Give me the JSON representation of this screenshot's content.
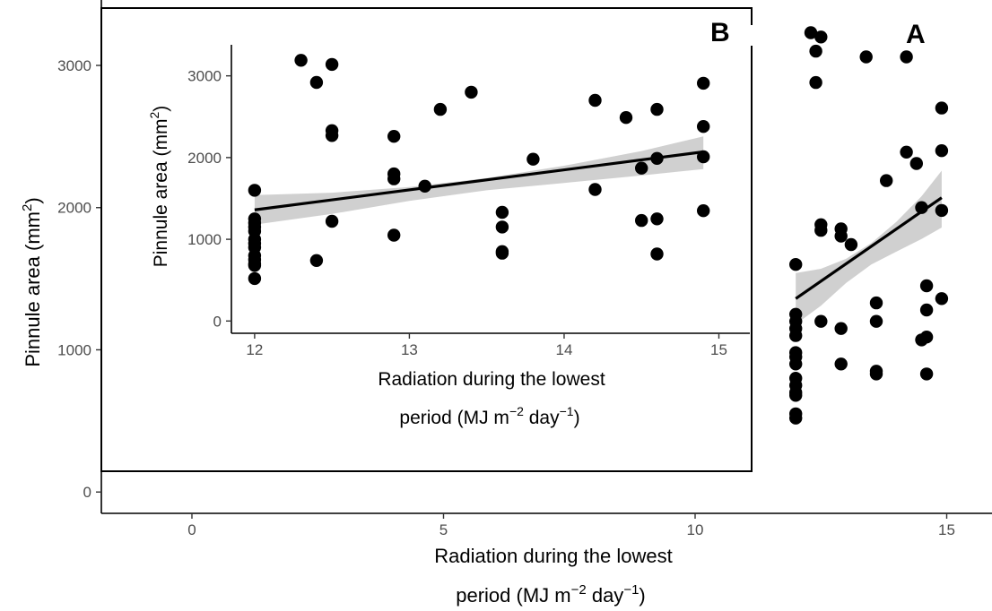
{
  "chart_data": [
    {
      "type": "scatter",
      "panel_label": "A",
      "xlabel": {
        "line1": "Radiation during the lowest",
        "line2_pre": "period (MJ m",
        "sup1": "−2",
        "line2_mid": " day",
        "sup2": "−1",
        "line2_post": ")"
      },
      "ylabel": {
        "pre": "Pinnule area (mm",
        "sup": "2",
        "post": ")"
      },
      "xlim": [
        -1.8,
        15.9
      ],
      "ylim": [
        -150,
        3460
      ],
      "xticks": [
        0,
        5,
        10,
        15
      ],
      "yticks": [
        0,
        1000,
        2000,
        3000
      ],
      "xtick_labels": [
        "0",
        "5",
        "10",
        "15"
      ],
      "ytick_labels": [
        "0",
        "1000",
        "2000",
        "3000"
      ],
      "grid": false,
      "points": {
        "x": [
          12,
          12,
          12,
          12,
          12,
          12,
          12,
          12,
          12,
          12,
          12,
          12,
          12,
          12,
          12.3,
          12.4,
          12.4,
          12.5,
          12.5,
          12.5,
          12.5,
          12.9,
          12.9,
          12.9,
          12.9,
          13.1,
          13.4,
          13.6,
          13.6,
          13.6,
          13.6,
          13.8,
          14.2,
          14.2,
          14.4,
          14.5,
          14.5,
          14.6,
          14.6,
          14.6,
          14.6,
          14.9,
          14.9,
          14.9,
          14.9
        ],
        "y": [
          1600,
          1250,
          1200,
          1150,
          1100,
          980,
          950,
          900,
          800,
          750,
          700,
          680,
          550,
          520,
          3230,
          3100,
          2880,
          3200,
          1880,
          1840,
          1200,
          1850,
          1800,
          1150,
          900,
          1740,
          3060,
          1330,
          1200,
          850,
          830,
          2190,
          3060,
          2390,
          2310,
          2000,
          1070,
          1450,
          1280,
          1090,
          830,
          2700,
          2400,
          1980,
          1360
        ]
      },
      "fit": {
        "x": [
          12,
          14.9
        ],
        "y": [
          1360,
          2070
        ]
      },
      "ci_band": {
        "x": [
          12,
          12.5,
          13,
          13.5,
          14,
          14.5,
          14.9
        ],
        "lower": [
          1180,
          1310,
          1470,
          1600,
          1690,
          1780,
          1860
        ],
        "upper": [
          1540,
          1570,
          1640,
          1750,
          1900,
          2080,
          2260
        ]
      }
    },
    {
      "type": "scatter",
      "panel_label": "B",
      "xlabel": {
        "line1": "Radiation during the lowest",
        "line2_pre": "period (MJ m",
        "sup1": "−2",
        "line2_mid": " day",
        "sup2": "−1",
        "line2_post": ")"
      },
      "ylabel": {
        "pre": "Pinnule area (mm",
        "sup": "2",
        "post": ")"
      },
      "xlim": [
        11.85,
        15.2
      ],
      "ylim": [
        -150,
        3380
      ],
      "xticks": [
        12,
        13,
        14,
        15
      ],
      "yticks": [
        0,
        1000,
        2000,
        3000
      ],
      "xtick_labels": [
        "12",
        "13",
        "14",
        "15"
      ],
      "ytick_labels": [
        "0",
        "1000",
        "2000",
        "3000"
      ],
      "grid": false,
      "points": {
        "x": [
          12,
          12,
          12,
          12,
          12,
          12,
          12,
          12,
          12,
          12,
          12,
          12,
          12,
          12.3,
          12.4,
          12.4,
          12.5,
          12.5,
          12.5,
          12.5,
          12.9,
          12.9,
          12.9,
          12.9,
          13.1,
          13.2,
          13.4,
          13.6,
          13.6,
          13.6,
          13.6,
          13.8,
          14.2,
          14.2,
          14.4,
          14.5,
          14.5,
          14.6,
          14.6,
          14.6,
          14.6,
          14.9,
          14.9,
          14.9,
          14.9
        ],
        "y": [
          1600,
          1250,
          1200,
          1150,
          1100,
          1000,
          950,
          900,
          800,
          750,
          700,
          680,
          520,
          3190,
          2920,
          740,
          3140,
          2330,
          2270,
          1220,
          2260,
          1800,
          1740,
          1050,
          1650,
          2590,
          2800,
          1330,
          1150,
          850,
          830,
          1980,
          2700,
          1610,
          2490,
          1870,
          1230,
          2590,
          1990,
          1250,
          820,
          2910,
          2380,
          2010,
          1350
        ]
      },
      "fit": {
        "x": [
          12,
          14.9
        ],
        "y": [
          1360,
          2070
        ]
      },
      "ci_band": {
        "x": [
          12,
          12.5,
          13,
          13.5,
          14,
          14.5,
          14.9
        ],
        "lower": [
          1180,
          1310,
          1470,
          1600,
          1690,
          1780,
          1860
        ],
        "upper": [
          1540,
          1570,
          1640,
          1750,
          1900,
          2080,
          2260
        ]
      }
    }
  ]
}
